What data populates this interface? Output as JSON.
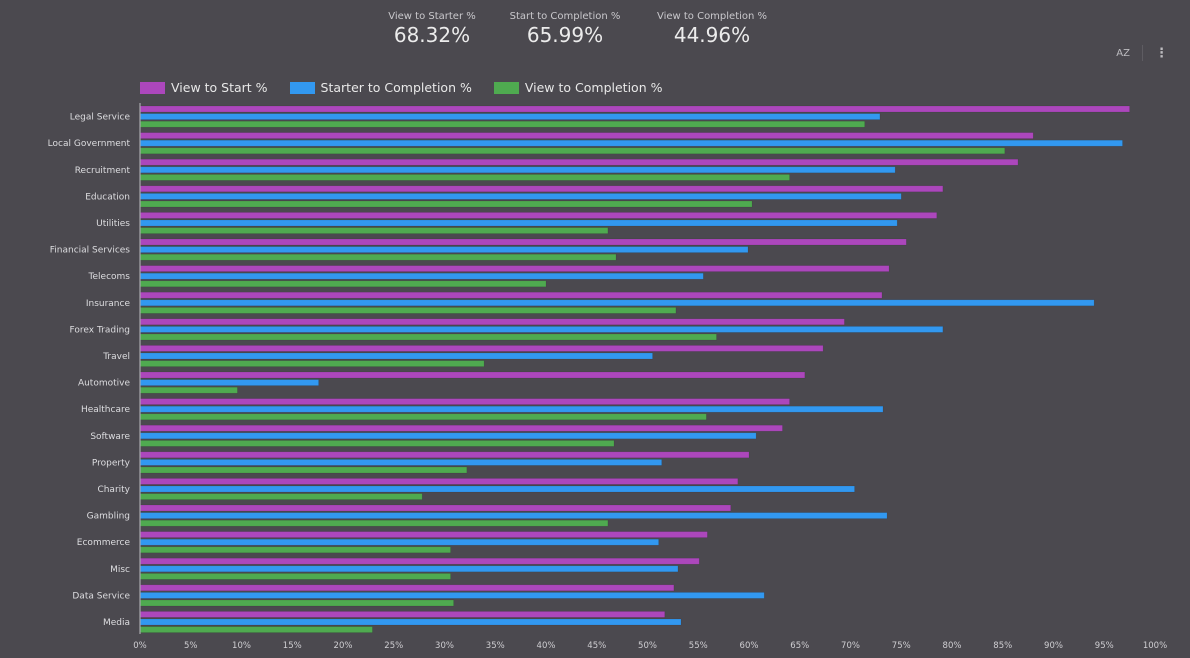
{
  "kpis": [
    {
      "label": "View to Starter %",
      "value": "68.32%"
    },
    {
      "label": "Start to Completion %",
      "value": "65.99%"
    },
    {
      "label": "View to Completion %",
      "value": "44.96%"
    }
  ],
  "toolbar": {
    "sort_icon": "sort-az-icon",
    "more_icon": "more-vertical-icon",
    "sort_glyph": "AZ",
    "more_glyph": "⋮"
  },
  "colors": {
    "view_to_start": "#ac47bc",
    "starter_to_completion": "#3298f0",
    "view_to_completion": "#4faa50",
    "background": "#4b494f"
  },
  "chart_data": {
    "type": "bar",
    "orientation": "horizontal",
    "title": "",
    "xlabel": "",
    "ylabel": "",
    "xlim": [
      0,
      100
    ],
    "x_ticks": [
      "0%",
      "5%",
      "10%",
      "15%",
      "20%",
      "25%",
      "30%",
      "35%",
      "40%",
      "45%",
      "50%",
      "55%",
      "60%",
      "65%",
      "70%",
      "75%",
      "80%",
      "85%",
      "90%",
      "95%",
      "100%"
    ],
    "legend_position": "top-left",
    "grid": false,
    "categories": [
      "Legal Service",
      "Local Government",
      "Recruitment",
      "Education",
      "Utilities",
      "Financial Services",
      "Telecoms",
      "Insurance",
      "Forex Trading",
      "Travel",
      "Automotive",
      "Healthcare",
      "Software",
      "Property",
      "Charity",
      "Gambling",
      "Ecommerce",
      "Misc",
      "Data Service",
      "Media"
    ],
    "series": [
      {
        "name": "View to Start %",
        "color": "#ac47bc",
        "values": [
          97.5,
          88.0,
          86.5,
          79.1,
          78.5,
          75.5,
          73.8,
          73.1,
          69.4,
          67.3,
          65.5,
          64.0,
          63.3,
          60.0,
          58.9,
          58.2,
          55.9,
          55.1,
          52.6,
          51.7
        ]
      },
      {
        "name": "Starter to Completion %",
        "color": "#3298f0",
        "values": [
          72.9,
          96.8,
          74.4,
          75.0,
          74.6,
          59.9,
          55.5,
          94.0,
          79.1,
          50.5,
          17.6,
          73.2,
          60.7,
          51.4,
          70.4,
          73.6,
          51.1,
          53.0,
          61.5,
          53.3
        ]
      },
      {
        "name": "View to Completion %",
        "color": "#4faa50",
        "values": [
          71.4,
          85.2,
          64.0,
          60.3,
          46.1,
          46.9,
          40.0,
          52.8,
          56.8,
          33.9,
          9.6,
          55.8,
          46.7,
          32.2,
          27.8,
          46.1,
          30.6,
          30.6,
          30.9,
          22.9
        ]
      }
    ]
  }
}
